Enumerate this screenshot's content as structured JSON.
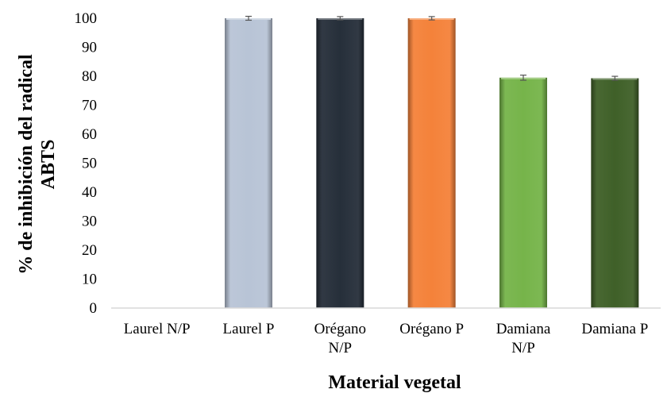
{
  "chart_data": {
    "type": "bar",
    "categories": [
      "Laurel N/P",
      "Laurel P",
      "Orégano N/P",
      "Orégano P",
      "Damiana N/P",
      "Damiana P"
    ],
    "category_lines": [
      [
        "Laurel N/P"
      ],
      [
        "Laurel P"
      ],
      [
        "Orégano",
        "N/P"
      ],
      [
        "Orégano P"
      ],
      [
        "Damiana",
        "N/P"
      ],
      [
        "Damiana P"
      ]
    ],
    "values": [
      0,
      100,
      100,
      100,
      79.5,
      79.3
    ],
    "error": [
      0,
      0.4,
      0.3,
      0.3,
      0.6,
      0.4
    ],
    "colors": [
      "#c9d3e3",
      "#b8c4d6",
      "#262f3a",
      "#f4823a",
      "#76b44a",
      "#3f6028"
    ],
    "title": "",
    "xlabel": "Material vegetal",
    "ylabel_lines": [
      "% de inhibición del radical",
      "ABTS"
    ],
    "ylim": [
      0,
      100
    ],
    "yticks": [
      0,
      10,
      20,
      30,
      40,
      50,
      60,
      70,
      80,
      90,
      100
    ],
    "grid": false,
    "legend": "none"
  }
}
